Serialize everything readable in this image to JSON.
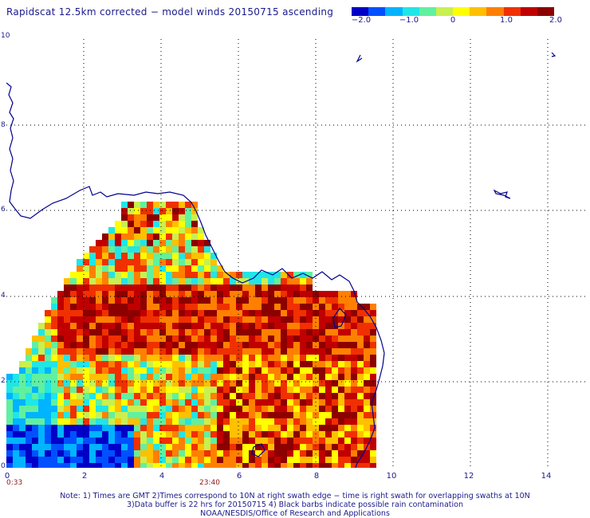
{
  "title": "Rapidscat 12.5km corrected − model winds 20150715 ascending",
  "colorbar": {
    "ticks": [
      "−2.0",
      "−1.0",
      "0",
      "1.0",
      "2.0"
    ],
    "colors": [
      "#0000c8",
      "#0050ff",
      "#00b4ff",
      "#20e6e6",
      "#60f0a0",
      "#c8f050",
      "#ffff00",
      "#ffc000",
      "#ff8000",
      "#f03000",
      "#c00000",
      "#8c0000"
    ]
  },
  "axes": {
    "x_ticks": [
      "0",
      "2",
      "4",
      "6",
      "8",
      "10",
      "12",
      "14"
    ],
    "y_ticks": [
      "10",
      "8",
      "6",
      "4",
      "2",
      "0"
    ]
  },
  "time_labels": [
    "0:33",
    "23:40"
  ],
  "notes": [
    "Note: 1) Times are GMT 2)Times correspond to 10N at right swath edge − time is right swath for overlapping swaths at 10N",
    "3)Data buffer is 22 hrs for 20150715 4) Black barbs indicate possible rain contamination",
    "NOAA/NESDIS/Office of Research and Applications"
  ],
  "colors": {
    "text": "#1a1a8c",
    "coast": "#00008b",
    "time_text": "#8b1a1a"
  }
}
